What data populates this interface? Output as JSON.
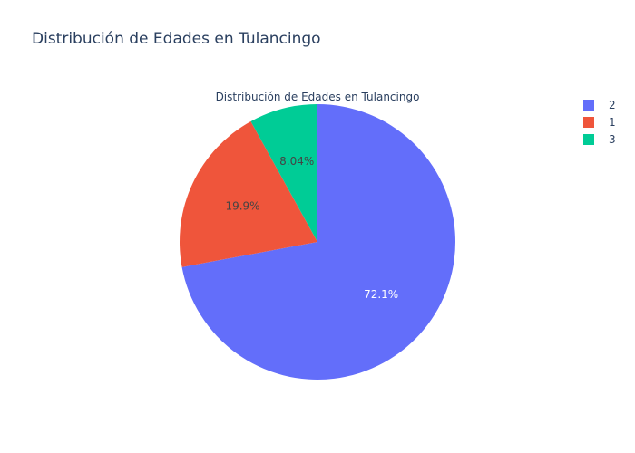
{
  "chart_data": {
    "type": "pie",
    "title": "Distribución de Edades en Tulancingo",
    "pie_title": "Distribución de Edades en Tulancingo",
    "slices": [
      {
        "label": "2",
        "percent": 72.1,
        "text": "72.1%",
        "color": "#636efa",
        "text_color": "#ffffff"
      },
      {
        "label": "1",
        "percent": 19.9,
        "text": "19.9%",
        "color": "#ef553b",
        "text_color": "#444444"
      },
      {
        "label": "3",
        "percent": 8.04,
        "text": "8.04%",
        "color": "#00cc96",
        "text_color": "#444444"
      }
    ],
    "legend": {
      "placement": "top-right",
      "entries": [
        "2",
        "1",
        "3"
      ]
    }
  }
}
